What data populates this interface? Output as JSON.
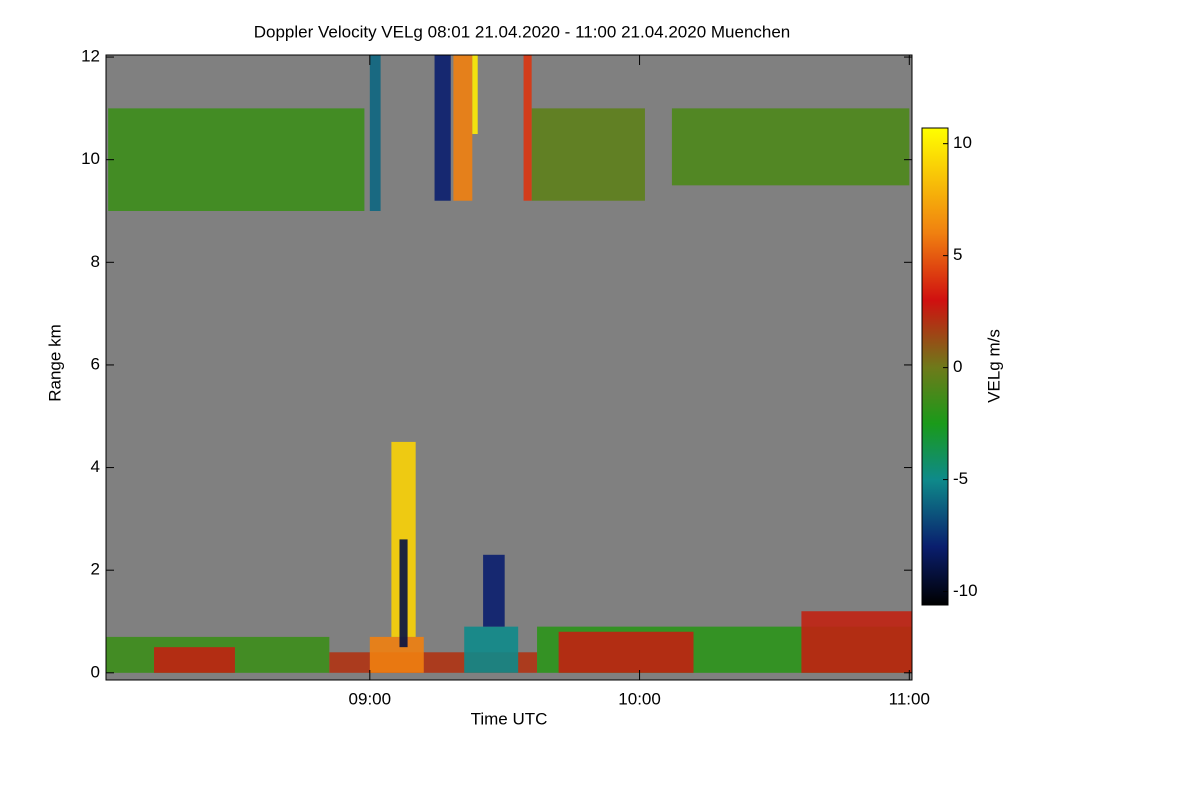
{
  "chart_data": {
    "type": "heatmap",
    "title": "Doppler Velocity VELg   08:01 21.04.2020 - 11:00 21.04.2020 Muenchen",
    "x_label": "Time UTC",
    "y_label": "Range km",
    "colorbar_label": "VELg m/s",
    "background_color": "#808080",
    "xlim": [
      8.022,
      11.01
    ],
    "ylim": [
      -0.14,
      12.04
    ],
    "xticks": [
      {
        "value": 9,
        "label": "09:00"
      },
      {
        "value": 10,
        "label": "10:00"
      },
      {
        "value": 11,
        "label": "11:00"
      }
    ],
    "yticks": [
      0,
      2,
      4,
      6,
      8,
      10,
      12
    ],
    "clim": [
      -10.6,
      10.7
    ],
    "cticks": [
      10,
      5,
      0,
      -5,
      -10
    ],
    "colormap": [
      {
        "value": -10.6,
        "color": "#000000"
      },
      {
        "value": -8,
        "color": "#0a1e6e"
      },
      {
        "value": -5,
        "color": "#0e8a8a"
      },
      {
        "value": -2.5,
        "color": "#1a9a1a"
      },
      {
        "value": 0,
        "color": "#6e7a1a"
      },
      {
        "value": 3,
        "color": "#d01010"
      },
      {
        "value": 6,
        "color": "#f08010"
      },
      {
        "value": 10.7,
        "color": "#ffff00"
      }
    ],
    "cells": [
      {
        "x": [
          8.03,
          8.98
        ],
        "y": [
          9.0,
          11.0
        ],
        "value": -1.5
      },
      {
        "x": [
          9.6,
          10.02
        ],
        "y": [
          9.2,
          11.0
        ],
        "value": -0.5
      },
      {
        "x": [
          10.12,
          11.0
        ],
        "y": [
          9.5,
          11.0
        ],
        "value": -1
      },
      {
        "x": [
          8.022,
          8.85
        ],
        "y": [
          0.0,
          0.7
        ],
        "value": -1.5
      },
      {
        "x": [
          8.2,
          8.5
        ],
        "y": [
          0.0,
          0.5
        ],
        "value": 2.5
      },
      {
        "x": [
          8.85,
          9.62
        ],
        "y": [
          0.0,
          0.4
        ],
        "value": 2
      },
      {
        "x": [
          9.62,
          11.01
        ],
        "y": [
          0.0,
          0.9
        ],
        "value": -2
      },
      {
        "x": [
          9.7,
          10.2
        ],
        "y": [
          0.0,
          0.8
        ],
        "value": 2.5
      },
      {
        "x": [
          10.6,
          11.01
        ],
        "y": [
          0.0,
          1.2
        ],
        "value": 2.5
      },
      {
        "x": [
          9.0,
          9.2
        ],
        "y": [
          0.0,
          0.7
        ],
        "value": 6
      },
      {
        "x": [
          9.08,
          9.17
        ],
        "y": [
          0.7,
          4.5
        ],
        "value": 9
      },
      {
        "x": [
          9.11,
          9.14
        ],
        "y": [
          0.5,
          2.6
        ],
        "value": -9
      },
      {
        "x": [
          9.35,
          9.55
        ],
        "y": [
          0.0,
          0.9
        ],
        "value": -5
      },
      {
        "x": [
          9.42,
          9.5
        ],
        "y": [
          0.9,
          2.3
        ],
        "value": -8
      },
      {
        "x": [
          9.0,
          9.04
        ],
        "y": [
          9.0,
          12.04
        ],
        "value": -6
      },
      {
        "x": [
          9.24,
          9.3
        ],
        "y": [
          9.2,
          12.04
        ],
        "value": -8
      },
      {
        "x": [
          9.31,
          9.38
        ],
        "y": [
          9.2,
          12.04
        ],
        "value": 6
      },
      {
        "x": [
          9.38,
          9.4
        ],
        "y": [
          10.5,
          12.04
        ],
        "value": 10
      },
      {
        "x": [
          9.57,
          9.6
        ],
        "y": [
          9.2,
          12.04
        ],
        "value": 4
      }
    ]
  }
}
